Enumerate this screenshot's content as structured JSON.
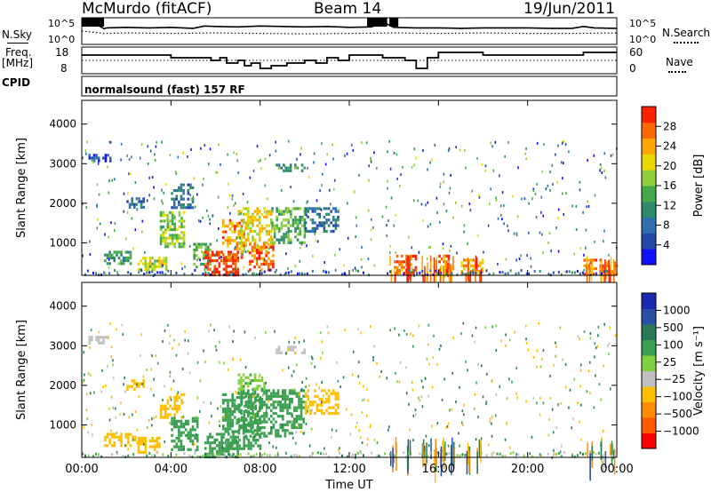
{
  "header": {
    "station": "McMurdo (fitACF)",
    "beam": "Beam 14",
    "date": "19/Jun/2011"
  },
  "aux": {
    "nsky_label": "N.Sky",
    "nsearch_label": "N.Search",
    "freq_label_line1": "Freq.",
    "freq_label_line2": "[MHz]",
    "nave_label": "Nave",
    "cpid_label": "CPID",
    "cpid_text": "normalsound (fast) 157 RF",
    "noise_left_ticks": [
      "10^5",
      "10^0"
    ],
    "noise_right_ticks": [
      "10^5",
      "10^0"
    ],
    "freq_ticks": [
      "18",
      "8"
    ],
    "nave_ticks": [
      "60",
      "0"
    ]
  },
  "colors": {
    "power_scale": [
      "#1010ff",
      "#2448a8",
      "#2f6fb0",
      "#2e8a6a",
      "#43a94a",
      "#8fcf3c",
      "#e8d800",
      "#ffa600",
      "#ff6a00",
      "#ff2200"
    ],
    "velocity_scale": [
      "#ff0000",
      "#ff5a00",
      "#ff8c00",
      "#ffbf00",
      "#c0c0c0",
      "#7fd13f",
      "#3aa050",
      "#2a7a55",
      "#2a4fa6",
      "#1a2ab0"
    ]
  },
  "chart_data": [
    {
      "type": "line",
      "name": "noise",
      "x_range_hours": [
        0,
        24
      ],
      "series": [
        {
          "name": "N.Sky",
          "x": [
            0,
            0.3,
            1.0,
            1.1,
            2.0,
            3.0,
            4.0,
            5.0,
            5.5,
            6.0,
            7.0,
            8.0,
            9.0,
            10.0,
            11.0,
            12.0,
            13.0,
            13.5,
            14.0,
            15.0,
            16.0,
            17.0,
            18.0,
            19.0,
            20.0,
            21.0,
            22.0,
            22.5,
            23.0,
            24.0
          ],
          "values": [
            5,
            5,
            3,
            3.2,
            3.3,
            3.2,
            3.3,
            3.1,
            3.6,
            3.5,
            3.4,
            3.6,
            3.5,
            3.4,
            3.5,
            3.3,
            3.4,
            4.5,
            3.3,
            3.2,
            3.2,
            3.1,
            3.2,
            3.2,
            3.2,
            3.1,
            3.1,
            3.5,
            3.2,
            3.1
          ]
        },
        {
          "name": "N.Search",
          "x": [
            0,
            1.0,
            2.0,
            4.0,
            6.0,
            8.0,
            10.0,
            12.0,
            14.0,
            16.0,
            18.0,
            20.0,
            22.0,
            24.0
          ],
          "values": [
            2.5,
            2.0,
            2.1,
            2.0,
            2.1,
            2.0,
            1.9,
            2.0,
            2.1,
            2.0,
            2.1,
            2.0,
            2.0,
            2.1
          ]
        }
      ]
    },
    {
      "type": "line",
      "name": "frequency-nave",
      "x_range_hours": [
        0,
        24
      ],
      "series": [
        {
          "name": "Freq.",
          "x": [
            0,
            3.9,
            4.0,
            5.5,
            5.8,
            6.2,
            6.5,
            7.0,
            7.3,
            7.6,
            8.0,
            8.5,
            9.2,
            10.0,
            10.5,
            11.0,
            11.5,
            12.0,
            13.0,
            13.5,
            14.0,
            14.5,
            15.0,
            15.5,
            16.0,
            17.0,
            18.0,
            19.0,
            20.0,
            21.0,
            22.0,
            22.5,
            23.0,
            24.0
          ],
          "values": [
            15,
            15,
            14,
            14,
            13,
            14,
            12,
            13,
            11,
            12,
            10,
            11,
            12,
            13,
            12,
            14,
            13,
            15,
            15,
            14,
            14,
            13,
            10,
            14,
            16,
            16,
            15,
            15,
            15,
            15,
            15,
            16,
            16,
            16
          ]
        },
        {
          "name": "Nave",
          "x": [
            0,
            24
          ],
          "values": [
            30,
            30
          ]
        }
      ],
      "ylim_freq": [
        8,
        18
      ],
      "ylim_nave": [
        0,
        60
      ]
    },
    {
      "type": "heatmap",
      "name": "power",
      "xlabel": "",
      "ylabel": "Slant Range [km]",
      "x_ticks": [
        "00:00",
        "04:00",
        "08:00",
        "12:00",
        "16:00",
        "20:00",
        "00:00"
      ],
      "y_ticks": [
        "1000",
        "2000",
        "3000",
        "4000"
      ],
      "ylim": [
        180,
        4600
      ],
      "colorbar_label": "Power [dB]",
      "colorbar_ticks": [
        "4",
        "8",
        "12",
        "16",
        "20",
        "24",
        "28"
      ],
      "regions": [
        {
          "t0": 0.3,
          "t1": 1.3,
          "r0": 3100,
          "r1": 3250,
          "v": 4
        },
        {
          "t0": 1.0,
          "t1": 2.2,
          "r0": 500,
          "r1": 800,
          "v": 12
        },
        {
          "t0": 2.0,
          "t1": 2.8,
          "r0": 1900,
          "r1": 2150,
          "v": 6
        },
        {
          "t0": 2.5,
          "t1": 3.8,
          "r0": 300,
          "r1": 650,
          "v": 18
        },
        {
          "t0": 3.5,
          "t1": 4.6,
          "r0": 900,
          "r1": 1800,
          "v": 16
        },
        {
          "t0": 4.0,
          "t1": 5.0,
          "r0": 1900,
          "r1": 2500,
          "v": 8
        },
        {
          "t0": 5.0,
          "t1": 5.8,
          "r0": 400,
          "r1": 1000,
          "v": 14
        },
        {
          "t0": 5.5,
          "t1": 7.0,
          "r0": 200,
          "r1": 800,
          "v": 28
        },
        {
          "t0": 6.3,
          "t1": 7.3,
          "r0": 600,
          "r1": 1600,
          "v": 24
        },
        {
          "t0": 7.0,
          "t1": 8.5,
          "r0": 800,
          "r1": 1900,
          "v": 20
        },
        {
          "t0": 7.5,
          "t1": 8.6,
          "r0": 300,
          "r1": 1000,
          "v": 26
        },
        {
          "t0": 8.5,
          "t1": 10.0,
          "r0": 1000,
          "r1": 1900,
          "v": 14
        },
        {
          "t0": 8.7,
          "t1": 10.0,
          "r0": 2800,
          "r1": 3000,
          "v": 12
        },
        {
          "t0": 10.0,
          "t1": 11.5,
          "r0": 1300,
          "r1": 1900,
          "v": 8
        },
        {
          "t0": 14.0,
          "t1": 15.0,
          "r0": 200,
          "r1": 700,
          "v": 26
        },
        {
          "t0": 16.0,
          "t1": 16.5,
          "r0": 200,
          "r1": 700,
          "v": 28
        },
        {
          "t0": 17.0,
          "t1": 18.0,
          "r0": 200,
          "r1": 600,
          "v": 22
        },
        {
          "t0": 22.5,
          "t1": 24.0,
          "r0": 200,
          "r1": 600,
          "v": 26
        }
      ]
    },
    {
      "type": "heatmap",
      "name": "velocity",
      "xlabel": "Time UT",
      "ylabel": "Slant Range [km]",
      "x_ticks": [
        "00:00",
        "04:00",
        "08:00",
        "12:00",
        "16:00",
        "20:00",
        "00:00"
      ],
      "y_ticks": [
        "1000",
        "2000",
        "3000",
        "4000"
      ],
      "ylim": [
        180,
        4600
      ],
      "colorbar_label": "Velocity [m s⁻¹]",
      "colorbar_ticks": [
        "1000",
        "500",
        "100",
        "25",
        "−25",
        "−100",
        "−500",
        "−1000"
      ],
      "regions": [
        {
          "t0": 0.3,
          "t1": 1.3,
          "r0": 3100,
          "r1": 3250,
          "v": -50
        },
        {
          "t0": 1.0,
          "t1": 2.5,
          "r0": 500,
          "r1": 800,
          "v": -300
        },
        {
          "t0": 2.0,
          "t1": 2.8,
          "r0": 1900,
          "r1": 2150,
          "v": -150
        },
        {
          "t0": 2.5,
          "t1": 3.5,
          "r0": 300,
          "r1": 700,
          "v": -300
        },
        {
          "t0": 3.5,
          "t1": 4.6,
          "r0": 1200,
          "r1": 1800,
          "v": -300
        },
        {
          "t0": 4.0,
          "t1": 5.2,
          "r0": 400,
          "r1": 1200,
          "v": 60
        },
        {
          "t0": 5.5,
          "t1": 7.0,
          "r0": 200,
          "r1": 800,
          "v": 60
        },
        {
          "t0": 6.3,
          "t1": 8.0,
          "r0": 400,
          "r1": 1800,
          "v": 60
        },
        {
          "t0": 7.0,
          "t1": 10.0,
          "r0": 700,
          "r1": 1900,
          "v": 60
        },
        {
          "t0": 8.7,
          "t1": 10.0,
          "r0": 2800,
          "r1": 3000,
          "v": -50
        },
        {
          "t0": 10.0,
          "t1": 11.5,
          "r0": 1300,
          "r1": 1900,
          "v": -200
        },
        {
          "t0": 7.0,
          "t1": 8.2,
          "r0": 1900,
          "r1": 2300,
          "v": 20
        }
      ]
    }
  ]
}
